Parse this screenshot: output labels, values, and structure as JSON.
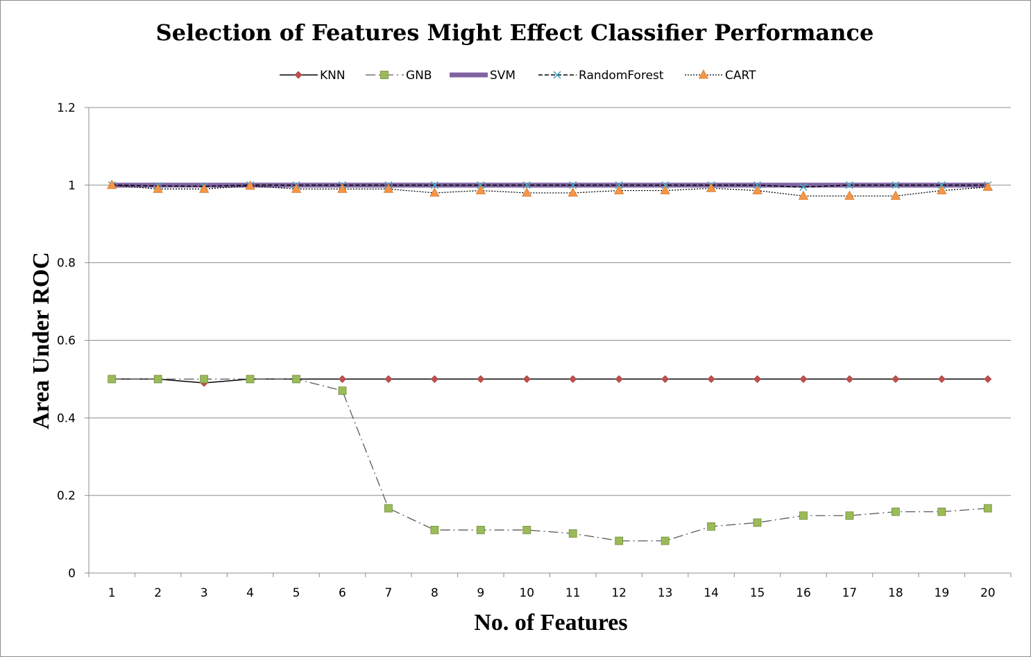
{
  "chart_data": {
    "type": "line",
    "title": "Selection of Features Might Effect Classifier Performance",
    "xlabel": "No. of Features",
    "ylabel": "Area Under ROC",
    "categories": [
      "1",
      "2",
      "3",
      "4",
      "5",
      "6",
      "7",
      "8",
      "9",
      "10",
      "11",
      "12",
      "13",
      "14",
      "15",
      "16",
      "17",
      "18",
      "19",
      "20"
    ],
    "ylim": [
      0,
      1.2
    ],
    "yticks": [
      "0",
      "0.2",
      "0.4",
      "0.6",
      "0.8",
      "1",
      "1.2"
    ],
    "grid": true,
    "legend_position": "top",
    "series": [
      {
        "name": "KNN",
        "color": "#000000",
        "marker": "diamond",
        "marker_color": "#c0504d",
        "line_style": "solid",
        "values": [
          0.5,
          0.5,
          0.49,
          0.5,
          0.5,
          0.5,
          0.5,
          0.5,
          0.5,
          0.5,
          0.5,
          0.5,
          0.5,
          0.5,
          0.5,
          0.5,
          0.5,
          0.5,
          0.5,
          0.5
        ]
      },
      {
        "name": "GNB",
        "color": "#595959",
        "marker": "square",
        "marker_color": "#9bbb59",
        "line_style": "dash-dot",
        "values": [
          0.5,
          0.5,
          0.5,
          0.5,
          0.5,
          0.47,
          0.167,
          0.111,
          0.111,
          0.111,
          0.102,
          0.083,
          0.083,
          0.12,
          0.13,
          0.148,
          0.148,
          0.158,
          0.158,
          0.167
        ]
      },
      {
        "name": "SVM",
        "color": "#8064a2",
        "marker": "none",
        "line_style": "thick-solid",
        "values": [
          1,
          1,
          1,
          1,
          1,
          1,
          1,
          1,
          1,
          1,
          1,
          1,
          1,
          1,
          1,
          1,
          1,
          1,
          1,
          1
        ]
      },
      {
        "name": "RandomForest",
        "color": "#000000",
        "marker": "x",
        "marker_color": "#4bacc6",
        "line_style": "dashed",
        "values": [
          1,
          0.998,
          0.997,
          1,
          1,
          1,
          1,
          1,
          1,
          1,
          1,
          1,
          1,
          1,
          1,
          0.995,
          1,
          1,
          1,
          1
        ]
      },
      {
        "name": "CART",
        "color": "#000000",
        "marker": "triangle",
        "marker_color": "#f79646",
        "line_style": "dotted",
        "values": [
          1,
          0.99,
          0.99,
          0.998,
          0.99,
          0.99,
          0.99,
          0.98,
          0.986,
          0.98,
          0.98,
          0.986,
          0.986,
          0.992,
          0.986,
          0.972,
          0.972,
          0.972,
          0.986,
          0.995
        ]
      }
    ]
  }
}
